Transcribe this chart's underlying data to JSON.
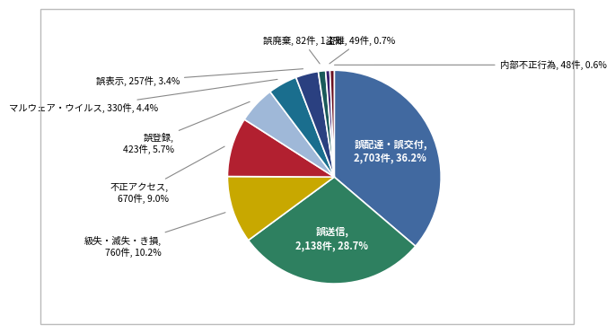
{
  "labels_internal": [
    "誤配達・誤交付,\n2,703件, 36.2%",
    "誤送信,\n2,138件, 28.7%"
  ],
  "labels_external": [
    "級失・滅失・き損,\n760件, 10.2%",
    "不正アクセス,\n670件, 9.0%",
    "誤登録,\n423件, 5.7%",
    "マルウェア・ウイルス, 330件, 4.4%",
    "誤表示, 257件, 3.4%",
    "誤廃棄, 82件, 1.1%",
    "盗難, 49件, 0.7%",
    "内部不正行為, 48件, 0.6%"
  ],
  "values": [
    2703,
    2138,
    760,
    670,
    423,
    330,
    257,
    82,
    49,
    48
  ],
  "colors": [
    "#4169A0",
    "#2E8060",
    "#C8A800",
    "#B22030",
    "#9FB8D8",
    "#1A6E8E",
    "#2A4080",
    "#1A5A5A",
    "#3A2070",
    "#6A1020"
  ],
  "background_color": "#FFFFFF",
  "border_color": "#BBBBBB"
}
